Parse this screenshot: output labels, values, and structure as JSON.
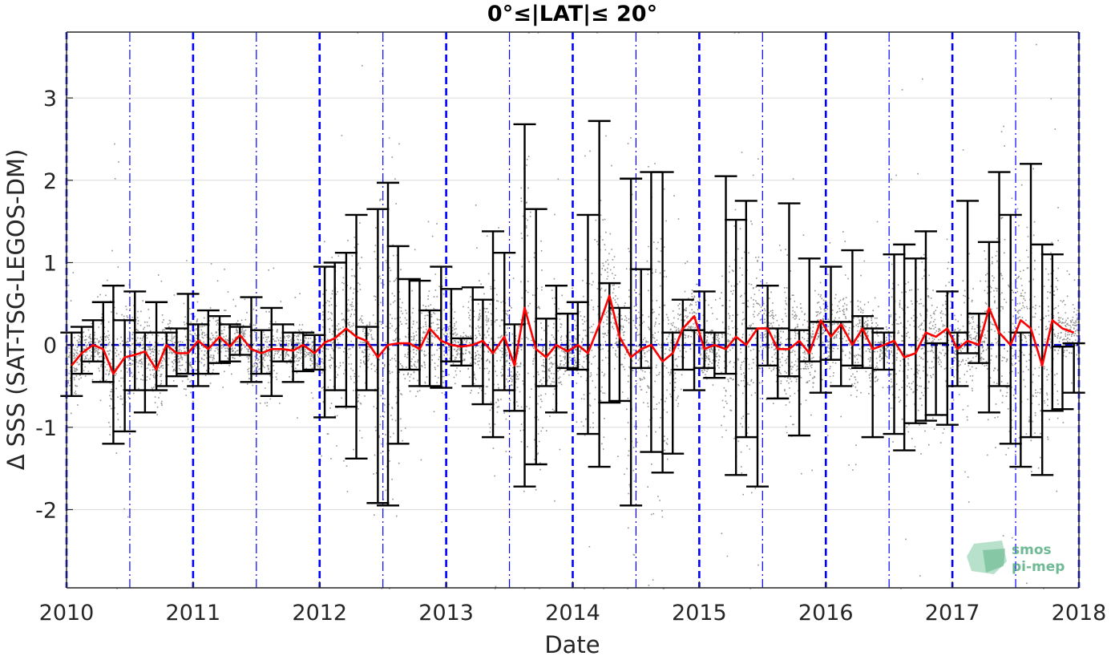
{
  "chart_data": {
    "type": "line",
    "title": "0°≤|LAT|≤ 20°",
    "xlabel": "Date",
    "ylabel": "Δ SSS (SAT-TSG-LEGOS-DM)",
    "xlim": [
      2010,
      2018
    ],
    "ylim": [
      -2.95,
      3.8
    ],
    "x_ticks": [
      "2010",
      "2011",
      "2012",
      "2013",
      "2014",
      "2015",
      "2016",
      "2017",
      "2018"
    ],
    "y_ticks": [
      "-2",
      "-1",
      "0",
      "1",
      "2",
      "3"
    ],
    "grid": true,
    "zero_line": 0,
    "year_boundaries": [
      2010,
      2011,
      2012,
      2013,
      2014,
      2015,
      2016,
      2017,
      2018
    ],
    "mid_year_lines": [
      2010.5,
      2011.5,
      2012.5,
      2013.5,
      2014.5,
      2015.5,
      2016.5,
      2017.5
    ],
    "colors": {
      "mean_line": "#ff0000",
      "error_bars": "#000000",
      "scatter_points": "#808080",
      "year_lines": "#0000ff",
      "zero_line": "#0000cc",
      "grid": "#dcdcdc"
    },
    "series": [
      {
        "x": [
          2010.04,
          2010.12,
          2010.21,
          2010.29,
          2010.37,
          2010.46,
          2010.54,
          2010.62,
          2010.71,
          2010.79,
          2010.87,
          2010.96,
          2011.04,
          2011.12,
          2011.21,
          2011.29,
          2011.37,
          2011.46,
          2011.54,
          2011.62,
          2011.71,
          2011.79,
          2011.87,
          2011.96,
          2012.04,
          2012.12,
          2012.21,
          2012.29,
          2012.37,
          2012.46,
          2012.54,
          2012.62,
          2012.71,
          2012.79,
          2012.87,
          2012.96,
          2013.04,
          2013.12,
          2013.21,
          2013.29,
          2013.37,
          2013.46,
          2013.54,
          2013.62,
          2013.71,
          2013.79,
          2013.87,
          2013.96,
          2014.04,
          2014.12,
          2014.21,
          2014.29,
          2014.37,
          2014.46,
          2014.54,
          2014.62,
          2014.71,
          2014.79,
          2014.87,
          2014.96,
          2015.04,
          2015.12,
          2015.21,
          2015.29,
          2015.37,
          2015.46,
          2015.54,
          2015.62,
          2015.71,
          2015.79,
          2015.87,
          2015.96,
          2016.04,
          2016.12,
          2016.21,
          2016.29,
          2016.37,
          2016.46,
          2016.54,
          2016.62,
          2016.71,
          2016.79,
          2016.87,
          2016.96,
          2017.04,
          2017.12,
          2017.21,
          2017.29,
          2017.37,
          2017.46,
          2017.54,
          2017.62,
          2017.71,
          2017.79,
          2017.87,
          2017.96
        ],
        "mean": [
          -0.25,
          -0.1,
          0,
          -0.05,
          -0.35,
          -0.15,
          -0.12,
          -0.08,
          -0.3,
          0,
          -0.1,
          -0.1,
          0.05,
          -0.05,
          0.1,
          -0.02,
          0.12,
          -0.05,
          -0.1,
          -0.05,
          -0.05,
          -0.07,
          0,
          -0.1,
          0.03,
          0.08,
          0.2,
          0.1,
          0.05,
          -0.15,
          0,
          0.02,
          0.02,
          -0.05,
          0.2,
          0.05,
          0,
          -0.02,
          0,
          0.05,
          -0.1,
          0.1,
          -0.25,
          0.45,
          -0.05,
          -0.15,
          0,
          -0.08,
          0,
          -0.1,
          0.25,
          0.6,
          0.1,
          -0.15,
          -0.05,
          0,
          -0.2,
          -0.1,
          0.2,
          0.35,
          -0.05,
          0,
          -0.05,
          0.1,
          0,
          0.2,
          0.2,
          -0.05,
          -0.05,
          0.05,
          -0.1,
          0.3,
          0.1,
          0.25,
          0,
          0.2,
          -0.05,
          0,
          0.05,
          -0.15,
          -0.1,
          0.15,
          0.1,
          0.2,
          -0.05,
          0.05,
          0,
          0.45,
          0.15,
          0,
          0.3,
          0.2,
          -0.25,
          0.3,
          0.2,
          0.15
        ],
        "err_low": [
          -0.62,
          -0.35,
          -0.2,
          -0.45,
          -1.2,
          -1.05,
          -0.55,
          -0.82,
          -0.55,
          -0.5,
          -0.38,
          -0.35,
          -0.5,
          -0.35,
          -0.22,
          -0.2,
          -0.12,
          -0.45,
          -0.35,
          -0.62,
          -0.2,
          -0.45,
          -0.32,
          -0.3,
          -0.88,
          -0.55,
          -0.75,
          -1.38,
          -0.55,
          -1.92,
          -1.95,
          -1.2,
          -0.3,
          -0.5,
          -0.5,
          -0.52,
          -0.2,
          -0.25,
          -0.5,
          -0.72,
          -1.12,
          -0.55,
          -0.8,
          -1.72,
          -1.45,
          -0.5,
          -0.82,
          -0.28,
          -0.3,
          -1.08,
          -1.48,
          -0.7,
          -0.68,
          -1.95,
          -0.28,
          -1.3,
          -1.55,
          -1.32,
          -0.3,
          -0.55,
          -0.28,
          -0.4,
          -0.35,
          -1.58,
          -1.12,
          -1.72,
          -0.25,
          -0.65,
          -0.38,
          -1.1,
          -0.2,
          -0.58,
          -0.18,
          -0.5,
          -0.25,
          -0.28,
          -1.12,
          -0.3,
          -1.08,
          -1.28,
          -0.95,
          -0.92,
          -0.85,
          -0.97,
          -0.5,
          -0.1,
          -0.22,
          -0.82,
          -0.5,
          -1.2,
          -1.48,
          -1.12,
          -1.58,
          -0.8,
          -0.78,
          -0.58
        ],
        "err_high": [
          0.15,
          0.22,
          0.3,
          0.52,
          0.72,
          0.3,
          0.65,
          0.15,
          0.52,
          0.15,
          0.2,
          0.62,
          0.25,
          0.42,
          0.35,
          0.25,
          0.22,
          0.58,
          0.18,
          0.45,
          0.25,
          0.15,
          0.15,
          0.12,
          0.95,
          1,
          1.12,
          1.58,
          0.22,
          1.65,
          1.97,
          1.2,
          0.8,
          0.78,
          0.42,
          0.95,
          0.68,
          0.08,
          0.7,
          0.55,
          1.38,
          1.12,
          0.25,
          2.68,
          1.65,
          0.32,
          0.72,
          0.38,
          0.52,
          1.58,
          2.72,
          0.75,
          0.45,
          2.02,
          0.92,
          2.1,
          2.1,
          0.15,
          0.55,
          0.18,
          0.65,
          0.15,
          2.05,
          1.52,
          1.75,
          0.2,
          0.72,
          0.2,
          1.72,
          0.18,
          1.05,
          0.28,
          0.95,
          0.28,
          1.15,
          0.35,
          0.2,
          0.15,
          1.1,
          1.22,
          1.05,
          1.38,
          0.02,
          0.65,
          0.15,
          1.75,
          0.38,
          1.25,
          2.1,
          1.58,
          0.15,
          2.2,
          1.22,
          1.1,
          -0.02,
          0.02
        ]
      }
    ]
  },
  "watermark": {
    "line1": "smos",
    "line2": "pi-mep",
    "color": "#4caa7a"
  }
}
